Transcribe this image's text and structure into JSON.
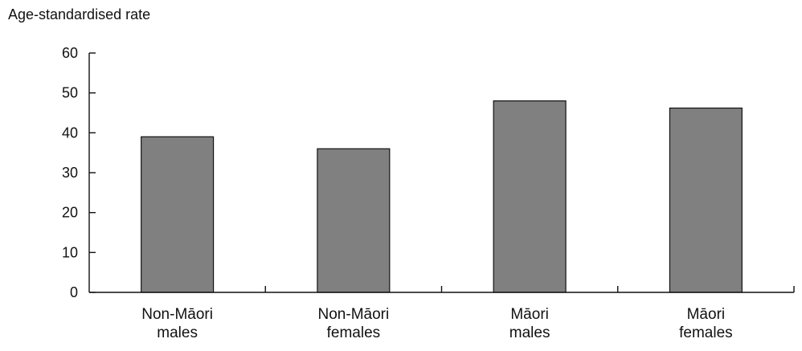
{
  "chart_data": {
    "type": "bar",
    "title": "",
    "ylabel": "Age-standardised rate",
    "xlabel": "",
    "categories": [
      [
        "Non-Māori",
        "males"
      ],
      [
        "Non-Māori",
        "females"
      ],
      [
        "Māori",
        "males"
      ],
      [
        "Māori",
        "females"
      ]
    ],
    "values": [
      39,
      36,
      48,
      46.2
    ],
    "ylim": [
      0,
      60
    ],
    "yticks": [
      0,
      10,
      20,
      30,
      40,
      50,
      60
    ],
    "grid": false,
    "legend": "none",
    "bar_color": "#808080",
    "edge_color": "#111111"
  }
}
